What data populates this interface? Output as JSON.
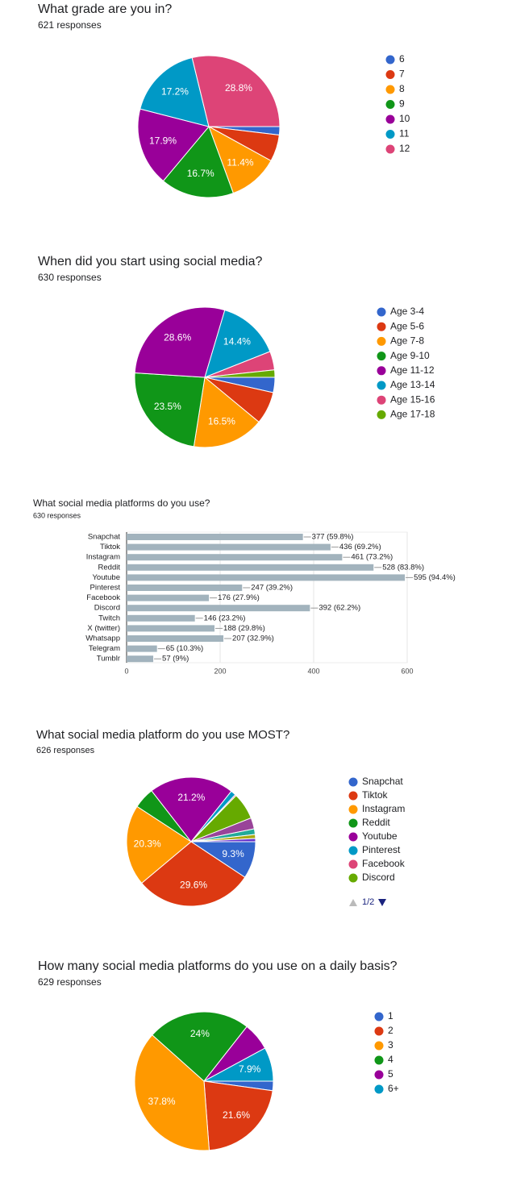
{
  "chart_data": [
    {
      "type": "pie",
      "title": "What grade are you in?",
      "subtitle": "621 responses",
      "categories": [
        "6",
        "7",
        "8",
        "9",
        "10",
        "11",
        "12"
      ],
      "values": [
        1.9,
        6.1,
        11.4,
        16.7,
        17.9,
        17.2,
        28.8
      ],
      "value_labels": [
        null,
        null,
        "11.4%",
        "16.7%",
        "17.9%",
        "17.2%",
        "28.8%"
      ],
      "colors": [
        "#3366cc",
        "#dc3912",
        "#ff9900",
        "#109618",
        "#990099",
        "#0099c6",
        "#dd4477"
      ]
    },
    {
      "type": "pie",
      "title": "When did you start using social media?",
      "subtitle": "630 responses",
      "categories": [
        "Age 3-4",
        "Age 5-6",
        "Age 7-8",
        "Age 9-10",
        "Age 11-12",
        "Age 13-14",
        "Age 15-16",
        "Age 17-18"
      ],
      "values": [
        3.5,
        7.5,
        16.5,
        23.5,
        28.6,
        14.4,
        4.3,
        1.7
      ],
      "value_labels": [
        null,
        null,
        "16.5%",
        "23.5%",
        "28.6%",
        "14.4%",
        null,
        null
      ],
      "colors": [
        "#3366cc",
        "#dc3912",
        "#ff9900",
        "#109618",
        "#990099",
        "#0099c6",
        "#dd4477",
        "#66aa00"
      ]
    },
    {
      "type": "bar",
      "orientation": "horizontal",
      "title": "What social media platforms do you use?",
      "subtitle": "630 responses",
      "categories": [
        "Snapchat",
        "Tiktok",
        "Instagram",
        "Reddit",
        "Youtube",
        "Pinterest",
        "Facebook",
        "Discord",
        "Twitch",
        "X (twitter)",
        "Whatsapp",
        "Telegram",
        "Tumblr"
      ],
      "values": [
        377,
        436,
        461,
        528,
        595,
        247,
        176,
        392,
        146,
        188,
        207,
        65,
        57
      ],
      "value_labels": [
        "377 (59.8%)",
        "436 (69.2%)",
        "461 (73.2%)",
        "528 (83.8%)",
        "595 (94.4%)",
        "247 (39.2%)",
        "176 (27.9%)",
        "392 (62.2%)",
        "146 (23.2%)",
        "188 (29.8%)",
        "207 (32.9%)",
        "65 (10.3%)",
        "57 (9%)"
      ],
      "color": "#a2b3bd",
      "xlim": [
        0,
        600
      ],
      "xticks": [
        0,
        200,
        400,
        600
      ],
      "grid": true
    },
    {
      "type": "pie",
      "title": "What social media platform do you use MOST?",
      "subtitle": "626 responses",
      "categories": [
        "Snapchat",
        "Tiktok",
        "Instagram",
        "Reddit",
        "Youtube",
        "Pinterest",
        "Facebook",
        "Discord",
        null,
        null,
        null,
        null
      ],
      "values": [
        9.3,
        29.6,
        20.3,
        5.3,
        21.2,
        1.3,
        0.3,
        6.7,
        2.8,
        1.4,
        1.0,
        0.8
      ],
      "value_labels": [
        "9.3%",
        "29.6%",
        "20.3%",
        null,
        "21.2%",
        null,
        null,
        null,
        null,
        null,
        null,
        null
      ],
      "colors": [
        "#3366cc",
        "#dc3912",
        "#ff9900",
        "#109618",
        "#990099",
        "#0099c6",
        "#dd4477",
        "#66aa00",
        "#994499",
        "#22aa99",
        "#aaaa11",
        "#6633cc"
      ],
      "legend_page": "1/2"
    },
    {
      "type": "pie",
      "title": "How many social media platforms do you use on a daily basis?",
      "subtitle": "629 responses",
      "categories": [
        "1",
        "2",
        "3",
        "4",
        "5",
        "6+"
      ],
      "values": [
        2.2,
        21.6,
        37.8,
        24,
        6.5,
        7.9
      ],
      "value_labels": [
        null,
        "21.6%",
        "37.8%",
        "24%",
        null,
        "7.9%"
      ],
      "colors": [
        "#3366cc",
        "#dc3912",
        "#ff9900",
        "#109618",
        "#990099",
        "#0099c6"
      ]
    }
  ]
}
